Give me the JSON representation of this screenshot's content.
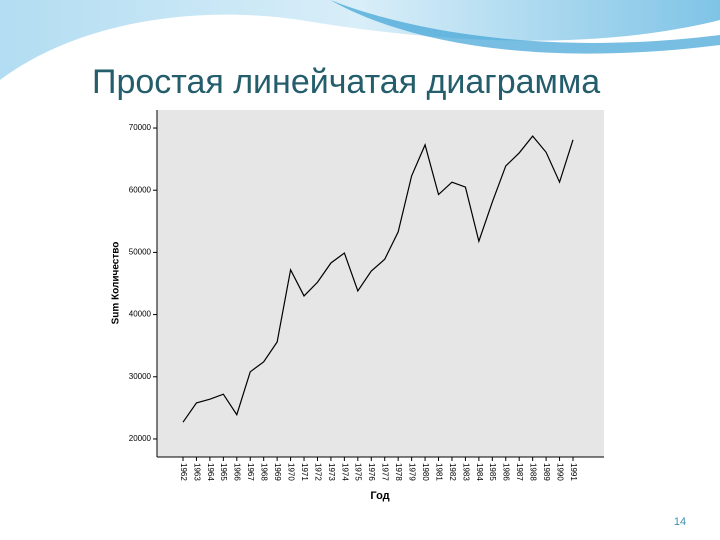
{
  "slide": {
    "title": "Простая линейчатая диаграмма",
    "page_number": "14"
  },
  "chart_data": {
    "type": "line",
    "x_label": "Год",
    "y_label": "Sum Количество",
    "categories": [
      "1962",
      "1963",
      "1964",
      "1965",
      "1966",
      "1967",
      "1968",
      "1969",
      "1970",
      "1971",
      "1972",
      "1973",
      "1974",
      "1975",
      "1976",
      "1977",
      "1978",
      "1979",
      "1980",
      "1981",
      "1982",
      "1983",
      "1984",
      "1985",
      "1986",
      "1987",
      "1988",
      "1989",
      "1990",
      "1991"
    ],
    "series": [
      {
        "name": "Sum Количество",
        "color": "#000000",
        "values": [
          22700,
          25800,
          26400,
          27200,
          23900,
          30800,
          32400,
          35600,
          47200,
          43000,
          45200,
          48300,
          49900,
          43800,
          47000,
          48900,
          53300,
          62300,
          67300,
          59300,
          61300,
          60500,
          51800,
          58100,
          63900,
          66000,
          68700,
          66100,
          61300,
          68100
        ]
      }
    ],
    "ylim": [
      17100,
      72900
    ],
    "yticks": [
      20000,
      30000,
      40000,
      50000,
      60000,
      70000
    ],
    "grid": false
  }
}
